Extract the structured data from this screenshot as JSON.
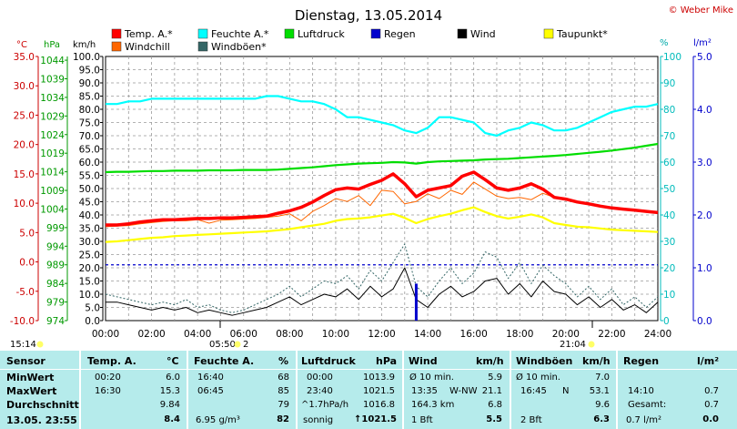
{
  "title": "Dienstag, 13.05.2014",
  "copyright": "© Weber Mike",
  "colors": {
    "temp": "#ff0000",
    "windchill": "#ff6600",
    "humidity": "#00ffff",
    "wind_gust": "#336666",
    "pressure": "#00dd00",
    "rain": "#0000cc",
    "wind": "#000000",
    "dewpoint": "#ffff00",
    "stats_bg": "#b5ebeb"
  },
  "legend": [
    {
      "label": "Temp. A.*",
      "color": "#ff0000"
    },
    {
      "label": "Feuchte A.*",
      "color": "#00ffff"
    },
    {
      "label": "Luftdruck",
      "color": "#00dd00"
    },
    {
      "label": "Regen",
      "color": "#0000cc"
    },
    {
      "label": "Wind",
      "color": "#000000"
    },
    {
      "label": "Taupunkt*",
      "color": "#ffff00"
    },
    {
      "label": "Windchill",
      "color": "#ff6600"
    },
    {
      "label": "Windböen*",
      "color": "#336666"
    }
  ],
  "axis_headers": {
    "temp_unit": "°C",
    "pressure_unit": "hPa",
    "wind_unit": "km/h",
    "humidity_unit": "%",
    "rain_unit": "l/m²"
  },
  "chart_data": {
    "type": "line",
    "x": [
      0,
      0.5,
      1,
      1.5,
      2,
      2.5,
      3,
      3.5,
      4,
      4.5,
      5,
      5.5,
      6,
      6.5,
      7,
      7.5,
      8,
      8.5,
      9,
      9.5,
      10,
      10.5,
      11,
      11.5,
      12,
      12.5,
      13,
      13.5,
      14,
      14.5,
      15,
      15.5,
      16,
      16.5,
      17,
      17.5,
      18,
      18.5,
      19,
      19.5,
      20,
      20.5,
      21,
      21.5,
      22,
      22.5,
      23,
      23.5,
      24
    ],
    "xlim": [
      0,
      24
    ],
    "x_ticks": [
      "00:00",
      "02:00",
      "04:00",
      "06:00",
      "08:00",
      "10:00",
      "12:00",
      "14:00",
      "16:00",
      "18:00",
      "20:00",
      "22:00",
      "24:00"
    ],
    "axes": {
      "temp": {
        "label": "°C",
        "range": [
          -10,
          35
        ],
        "ticks": [
          "35.0",
          "30.0",
          "25.0",
          "20.0",
          "15.0",
          "10.0",
          "5.0",
          "0.0",
          "-5.0",
          "-10.0"
        ]
      },
      "pressure": {
        "label": "hPa",
        "range": [
          974,
          1045
        ],
        "ticks": [
          "1044",
          "1039",
          "1034",
          "1029",
          "1024",
          "1019",
          "1014",
          "1009",
          "1004",
          "999",
          "994",
          "989",
          "984",
          "979",
          "974"
        ]
      },
      "wind": {
        "label": "km/h",
        "range": [
          0,
          100
        ],
        "ticks": [
          "100.0",
          "95.0",
          "90.0",
          "85.0",
          "80.0",
          "75.0",
          "70.0",
          "65.0",
          "60.0",
          "55.0",
          "50.0",
          "45.0",
          "40.0",
          "35.0",
          "30.0",
          "25.0",
          "20.0",
          "15.0",
          "10.0",
          "5.0",
          "0.0"
        ]
      },
      "humidity": {
        "label": "%",
        "range": [
          0,
          100
        ],
        "ticks": [
          "100",
          "90",
          "80",
          "70",
          "60",
          "50",
          "40",
          "30",
          "20",
          "10",
          "0"
        ]
      },
      "rain": {
        "label": "l/m²",
        "range": [
          0,
          5
        ],
        "ticks": [
          "5.0",
          "4.0",
          "3.0",
          "2.0",
          "1.0",
          "0.0"
        ]
      }
    },
    "series": [
      {
        "name": "Temp. A.*",
        "axis": "temp",
        "values": [
          6.3,
          6.3,
          6.5,
          6.8,
          7.0,
          7.2,
          7.2,
          7.3,
          7.4,
          7.4,
          7.5,
          7.5,
          7.6,
          7.7,
          7.8,
          8.3,
          8.7,
          9.3,
          10.2,
          11.3,
          12.3,
          12.6,
          12.4,
          13.2,
          13.9,
          15.0,
          13.3,
          11.1,
          12.2,
          12.6,
          13.0,
          14.6,
          15.3,
          14.0,
          12.6,
          12.2,
          12.6,
          13.3,
          12.4,
          11.0,
          10.7,
          10.2,
          9.9,
          9.5,
          9.2,
          9.0,
          8.8,
          8.6,
          8.4
        ]
      },
      {
        "name": "Windchill",
        "axis": "temp",
        "values": [
          6.0,
          6.1,
          6.2,
          6.5,
          6.7,
          6.9,
          7.0,
          7.0,
          7.2,
          6.6,
          7.1,
          7.2,
          7.3,
          7.4,
          7.6,
          7.8,
          8.2,
          7.0,
          8.6,
          9.6,
          10.8,
          10.3,
          11.3,
          9.6,
          12.2,
          12.0,
          9.9,
          10.3,
          11.6,
          10.8,
          12.2,
          11.5,
          13.6,
          12.4,
          11.2,
          10.8,
          11.0,
          10.6,
          11.7,
          11.0,
          10.7,
          10.2,
          9.9,
          9.5,
          9.2,
          9.0,
          8.8,
          8.6,
          8.4
        ]
      },
      {
        "name": "Feuchte A.*",
        "axis": "humidity",
        "values": [
          82,
          82,
          83,
          83,
          84,
          84,
          84,
          84,
          84,
          84,
          84,
          84,
          84,
          84,
          85,
          85,
          84,
          83,
          83,
          82,
          80,
          77,
          77,
          76,
          75,
          74,
          72,
          71,
          73,
          77,
          77,
          76,
          75,
          71,
          70,
          72,
          73,
          75,
          74,
          72,
          72,
          73,
          75,
          77,
          79,
          80,
          81,
          81,
          82
        ]
      },
      {
        "name": "Luftdruck",
        "axis": "pressure",
        "values": [
          1013.9,
          1014,
          1014,
          1014.1,
          1014.2,
          1014.2,
          1014.3,
          1014.3,
          1014.3,
          1014.4,
          1014.4,
          1014.4,
          1014.5,
          1014.5,
          1014.5,
          1014.6,
          1014.8,
          1015.0,
          1015.2,
          1015.5,
          1015.8,
          1016.0,
          1016.2,
          1016.3,
          1016.4,
          1016.6,
          1016.5,
          1016.2,
          1016.6,
          1016.8,
          1016.9,
          1017.0,
          1017.1,
          1017.3,
          1017.4,
          1017.5,
          1017.7,
          1017.9,
          1018.1,
          1018.3,
          1018.5,
          1018.8,
          1019.1,
          1019.4,
          1019.7,
          1020.1,
          1020.5,
          1021.0,
          1021.5
        ]
      },
      {
        "name": "Taupunkt*",
        "axis": "temp",
        "values": [
          3.4,
          3.5,
          3.7,
          3.9,
          4.1,
          4.2,
          4.4,
          4.5,
          4.6,
          4.7,
          4.8,
          4.9,
          5.0,
          5.1,
          5.2,
          5.4,
          5.6,
          5.9,
          6.2,
          6.5,
          7.0,
          7.3,
          7.4,
          7.6,
          7.9,
          8.2,
          7.5,
          6.6,
          7.3,
          7.8,
          8.2,
          8.8,
          9.3,
          8.5,
          7.8,
          7.4,
          7.7,
          8.1,
          7.6,
          6.6,
          6.3,
          6.0,
          5.9,
          5.7,
          5.5,
          5.4,
          5.3,
          5.2,
          5.1
        ]
      },
      {
        "name": "Wind",
        "axis": "wind",
        "values": [
          7,
          7,
          6,
          5,
          4,
          5,
          4,
          5,
          3,
          4,
          3,
          2,
          3,
          4,
          5,
          7,
          9,
          6,
          8,
          10,
          9,
          12,
          8,
          13,
          9,
          12,
          20,
          8,
          5,
          10,
          13,
          9,
          11,
          15,
          16,
          10,
          14,
          9,
          15,
          11,
          10,
          6,
          9,
          5,
          8,
          4,
          6,
          3,
          7
        ]
      },
      {
        "name": "Windböen*",
        "axis": "wind",
        "values": [
          10,
          9,
          8,
          7,
          6,
          7,
          6,
          8,
          5,
          6,
          4,
          3,
          4,
          6,
          8,
          10,
          13,
          9,
          12,
          15,
          14,
          17,
          12,
          19,
          15,
          22,
          29,
          13,
          9,
          15,
          20,
          14,
          18,
          26,
          24,
          16,
          22,
          14,
          21,
          17,
          14,
          9,
          13,
          8,
          12,
          6,
          9,
          5,
          9
        ]
      },
      {
        "name": "Regen",
        "axis": "rain",
        "values": [
          0,
          0,
          0,
          0,
          0,
          0,
          0,
          0,
          0,
          0,
          0,
          0,
          0,
          0,
          0,
          0,
          0,
          0,
          0,
          0,
          0,
          0,
          0,
          0,
          0,
          0,
          0,
          0.7,
          0,
          0,
          0,
          0,
          0,
          0,
          0,
          0,
          0,
          0,
          0,
          0,
          0,
          0,
          0,
          0,
          0,
          0,
          0,
          0,
          0
        ]
      }
    ],
    "ref_lines": [
      {
        "axis": "pressure",
        "value": 989,
        "color": "#0000cc",
        "style": "dashed"
      }
    ],
    "markers": {
      "left_time": "15:14",
      "sunrise": "05:50",
      "sunset": "21:04",
      "sunrise_suffix": "2"
    },
    "grid": true
  },
  "stats": {
    "row_labels": [
      "Sensor",
      "MinWert",
      "MaxWert",
      "Durchschnitt",
      "13.05. 23:55"
    ],
    "temp": {
      "header": "Temp. A.",
      "unit": "°C",
      "min_time": "00:20",
      "min": "6.0",
      "max_time": "16:30",
      "max": "15.3",
      "avg": "9.84",
      "current": "8.4"
    },
    "humidity": {
      "header": "Feuchte A.",
      "unit": "%",
      "min_time": "16:40",
      "min": "68",
      "max_time": "06:45",
      "max": "85",
      "avg": "79",
      "current_extra": "6.95 g/m³",
      "current": "82"
    },
    "pressure": {
      "header": "Luftdruck",
      "unit": "hPa",
      "min_time": "00:00",
      "min": "1013.9",
      "max_time": "23:40",
      "max": "1021.5",
      "avg_trend": "^1.7hPa/h",
      "avg": "1016.8",
      "current_extra": "sonnig",
      "current": "↑1021.5"
    },
    "wind": {
      "header": "Wind",
      "unit": "km/h",
      "min_label": "Ø 10 min.",
      "min": "5.9",
      "max_time": "13:35",
      "max_dir": "W-NW",
      "max": "21.1",
      "avg_label": "164.3 km",
      "avg": "6.8",
      "current_label": "1 Bft",
      "current": "5.5"
    },
    "gust": {
      "header": "Windböen",
      "unit": "km/h",
      "min_label": "Ø 10 min.",
      "min": "7.0",
      "max_time": "16:45",
      "max_dir": "N",
      "max": "53.1",
      "avg": "9.6",
      "current_label": "2 Bft",
      "current": "6.3"
    },
    "rain": {
      "header": "Regen",
      "unit": "l/m²",
      "max_time": "14:10",
      "max": "0.7",
      "avg_label": "Gesamt:",
      "avg": "0.7",
      "current_label": "0.7 l/m²",
      "current": "0.0"
    }
  }
}
